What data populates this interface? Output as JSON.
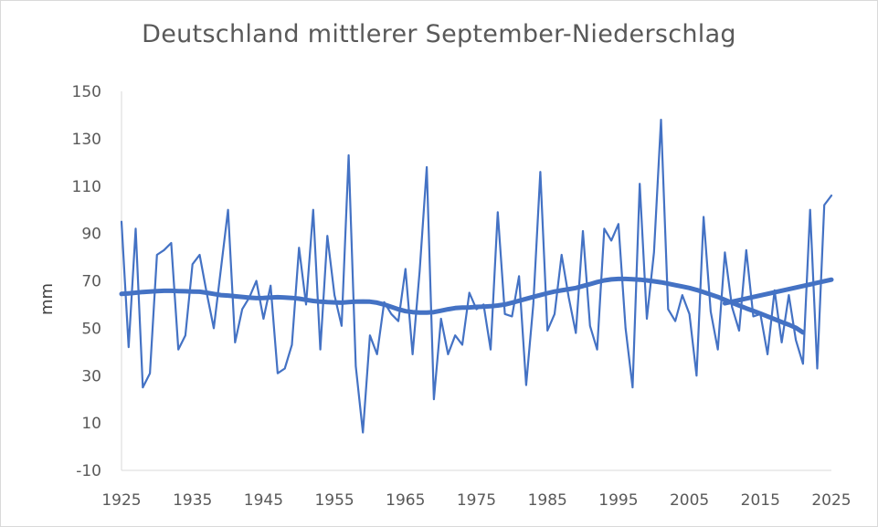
{
  "chart_data": {
    "type": "line",
    "title": "Deutschland mittlerer September-Niederschlag",
    "xlabel": "",
    "ylabel": "mm",
    "xlim": [
      1925,
      2025
    ],
    "ylim": [
      -10,
      150
    ],
    "x_ticks": [
      "1925",
      "1935",
      "1945",
      "1955",
      "1965",
      "1975",
      "1985",
      "1995",
      "2005",
      "2015",
      "2025"
    ],
    "y_ticks": [
      "-10",
      "10",
      "30",
      "50",
      "70",
      "90",
      "110",
      "130",
      "150"
    ],
    "grid": false,
    "legend": "none",
    "series": [
      {
        "color": "#4472c4",
        "style": "thin",
        "x": [
          1925,
          1926,
          1927,
          1928,
          1929,
          1930,
          1931,
          1932,
          1933,
          1934,
          1935,
          1936,
          1937,
          1938,
          1939,
          1940,
          1941,
          1942,
          1943,
          1944,
          1945,
          1946,
          1947,
          1948,
          1949,
          1950,
          1951,
          1952,
          1953,
          1954,
          1955,
          1956,
          1957,
          1958,
          1959,
          1960,
          1961,
          1962,
          1963,
          1964,
          1965,
          1966,
          1967,
          1968,
          1969,
          1970,
          1971,
          1972,
          1973,
          1974,
          1975,
          1976,
          1977,
          1978,
          1979,
          1980,
          1981,
          1982,
          1983,
          1984,
          1985,
          1986,
          1987,
          1988,
          1989,
          1990,
          1991,
          1992,
          1993,
          1994,
          1995,
          1996,
          1997,
          1998,
          1999,
          2000,
          2001,
          2002,
          2003,
          2004,
          2005,
          2006,
          2007,
          2008,
          2009,
          2010,
          2011,
          2012,
          2013,
          2014,
          2015,
          2016,
          2017,
          2018,
          2019,
          2020,
          2021,
          2022,
          2023,
          2024,
          2025
        ],
        "values": [
          95,
          42,
          92,
          25,
          31,
          81,
          83,
          86,
          41,
          47,
          77,
          81,
          65,
          50,
          75,
          100,
          44,
          58,
          63,
          70,
          54,
          68,
          31,
          33,
          43,
          84,
          60,
          100,
          41,
          89,
          64,
          51,
          123,
          34,
          6,
          47,
          39,
          61,
          56,
          53,
          75,
          39,
          74,
          118,
          20,
          54,
          39,
          47,
          43,
          65,
          58,
          60,
          41,
          99,
          56,
          55,
          72,
          26,
          60,
          116,
          49,
          56,
          81,
          63,
          48,
          91,
          51,
          41,
          92,
          87,
          94,
          50,
          25,
          111,
          54,
          82,
          138,
          58,
          53,
          64,
          56,
          30,
          97,
          57,
          41,
          82,
          59,
          49,
          83,
          55,
          56,
          39,
          66,
          44,
          64,
          45,
          35,
          100,
          33,
          102,
          106
        ]
      },
      {
        "color": "#4472c4",
        "style": "thick",
        "x": [
          1925,
          1926,
          1927,
          1928,
          1929,
          1930,
          1931,
          1932,
          1933,
          1934,
          1935,
          1936,
          1937,
          1938,
          1939,
          1940,
          1941,
          1942,
          1943,
          1944,
          1945,
          1946,
          1947,
          1948,
          1949,
          1950,
          1951,
          1952,
          1953,
          1954,
          1955,
          1956,
          1957,
          1958,
          1959,
          1960,
          1961,
          1962,
          1963,
          1964,
          1965,
          1966,
          1967,
          1968,
          1969,
          1970,
          1971,
          1972,
          1973,
          1974,
          1975,
          1976,
          1977,
          1978,
          1979,
          1980,
          1981,
          1982,
          1983,
          1984,
          1985,
          1986,
          1987,
          1988,
          1989,
          1990,
          1991,
          1992,
          1993,
          1994,
          1995,
          1996,
          1997,
          1998,
          1999,
          2000,
          2001,
          2002,
          2003,
          2004,
          2005,
          2006,
          2007,
          2008,
          2009,
          2010,
          2011,
          2012,
          2013,
          2014,
          2015,
          2016,
          2017,
          2018,
          2019,
          2020,
          2021
        ],
        "values": [
          64.5,
          64.7,
          65,
          65.3,
          65.5,
          65.7,
          65.8,
          65.8,
          65.7,
          65.6,
          65.5,
          65.4,
          65,
          64.5,
          64,
          63.8,
          63.5,
          63.2,
          62.9,
          62.7,
          62.8,
          63,
          63.1,
          63,
          62.8,
          62.5,
          62,
          61.5,
          61.2,
          61,
          60.9,
          60.8,
          61,
          61.2,
          61.3,
          61.2,
          60.8,
          60,
          59,
          58,
          57.2,
          56.8,
          56.6,
          56.6,
          56.8,
          57.4,
          58,
          58.5,
          58.7,
          58.8,
          59,
          59.1,
          59.3,
          59.6,
          60,
          60.8,
          61.6,
          62.4,
          63.2,
          64,
          64.8,
          65.5,
          66,
          66.5,
          67,
          67.8,
          68.6,
          69.5,
          70.2,
          70.6,
          70.8,
          70.8,
          70.7,
          70.5,
          70.2,
          69.8,
          69.4,
          68.8,
          68.2,
          67.6,
          67,
          66.2,
          65.2,
          64.2,
          63.2,
          62,
          60.8,
          59.6,
          58.4,
          57.3,
          56.2,
          55,
          53.8,
          52.6,
          51.5,
          50.2,
          48.2
        ]
      },
      {
        "color": "#4472c4",
        "style": "linear-trend",
        "x": [
          2010,
          2025
        ],
        "values": [
          60.5,
          70.5
        ]
      }
    ]
  }
}
